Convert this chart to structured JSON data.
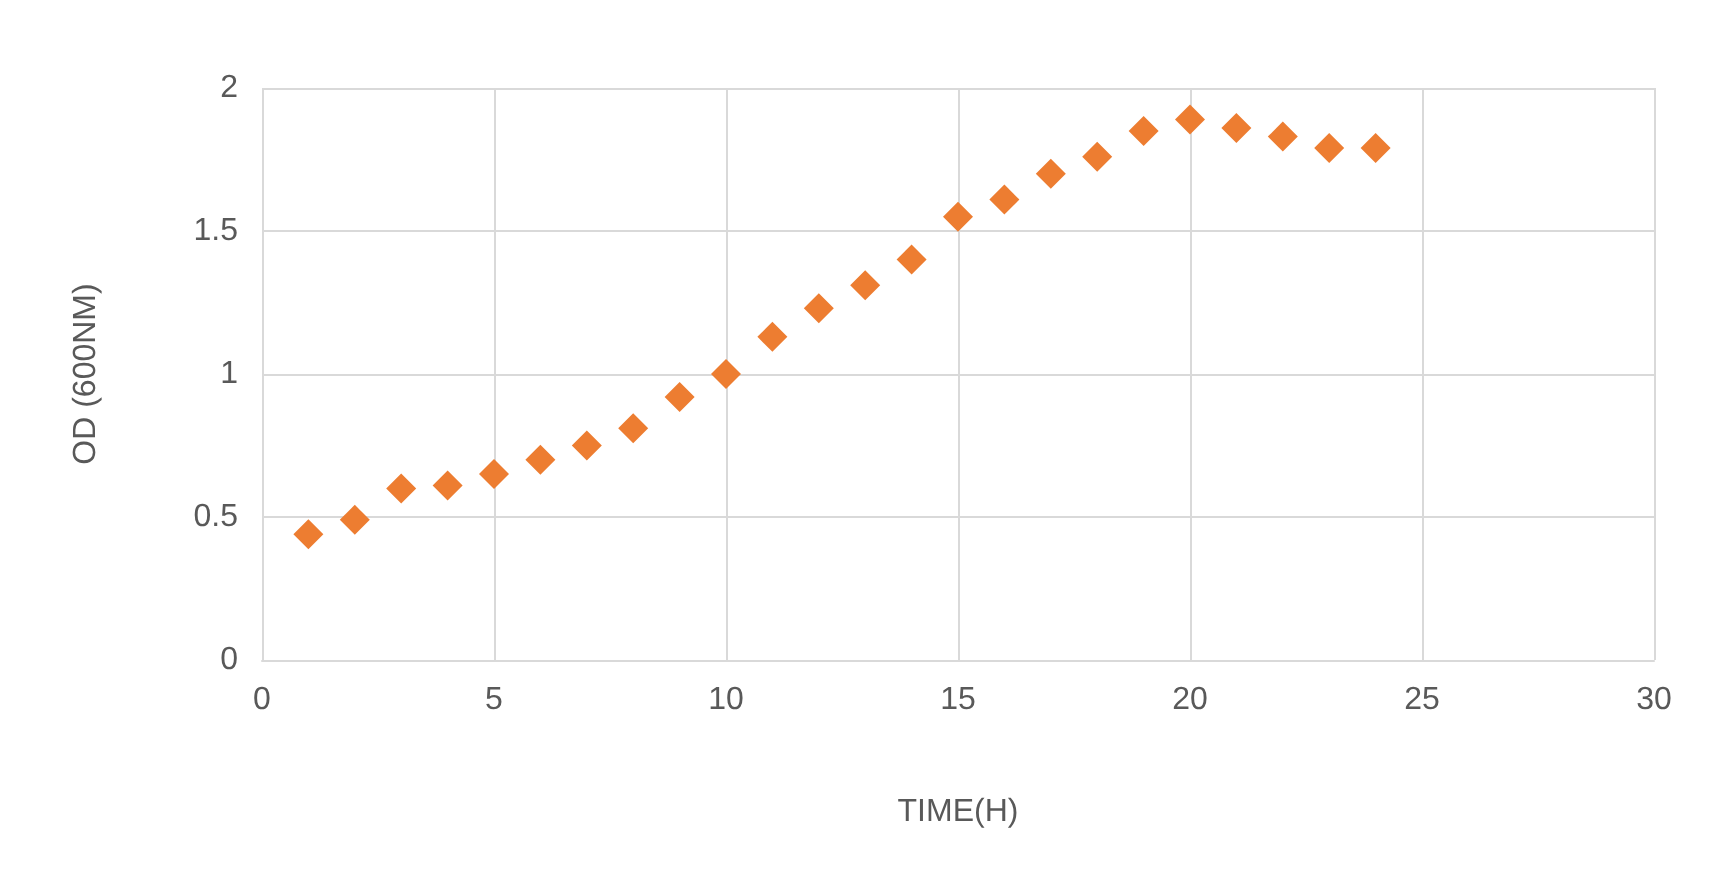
{
  "chart_data": {
    "type": "scatter",
    "xlabel": "TIME(H)",
    "ylabel": "OD (600NM)",
    "x": [
      1,
      2,
      3,
      4,
      5,
      6,
      7,
      8,
      9,
      10,
      11,
      12,
      13,
      14,
      15,
      16,
      17,
      18,
      19,
      20,
      21,
      22,
      23,
      24
    ],
    "series": [
      {
        "color": "#ed7d31",
        "values": [
          0.44,
          0.49,
          0.6,
          0.61,
          0.65,
          0.7,
          0.75,
          0.81,
          0.92,
          1.0,
          1.13,
          1.23,
          1.31,
          1.4,
          1.55,
          1.61,
          1.7,
          1.76,
          1.85,
          1.89,
          1.86,
          1.83,
          1.79,
          1.79
        ]
      }
    ],
    "xlim": [
      0,
      30
    ],
    "xticks": [
      0,
      5,
      10,
      15,
      20,
      25,
      30
    ],
    "ylim": [
      0,
      2
    ],
    "yticks": [
      0,
      0.5,
      1,
      1.5,
      2
    ],
    "grid": true,
    "marker": "diamond"
  }
}
